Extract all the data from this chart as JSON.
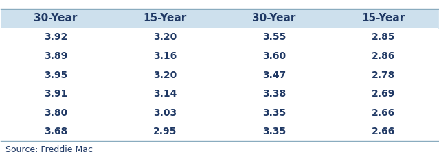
{
  "columns": [
    "30-Year",
    "15-Year",
    "30-Year",
    "15-Year"
  ],
  "rows": [
    [
      "3.92",
      "3.20",
      "3.55",
      "2.85"
    ],
    [
      "3.89",
      "3.16",
      "3.60",
      "2.86"
    ],
    [
      "3.95",
      "3.20",
      "3.47",
      "2.78"
    ],
    [
      "3.91",
      "3.14",
      "3.38",
      "2.69"
    ],
    [
      "3.80",
      "3.03",
      "3.35",
      "2.66"
    ],
    [
      "3.68",
      "2.95",
      "3.35",
      "2.66"
    ]
  ],
  "source_text": "Source: Freddie Mac",
  "header_bg_color": "#cde0ed",
  "header_text_color": "#1f3864",
  "cell_text_color": "#1f3864",
  "table_bg_color": "#ffffff",
  "header_fontsize": 11,
  "cell_fontsize": 10,
  "source_fontsize": 9
}
